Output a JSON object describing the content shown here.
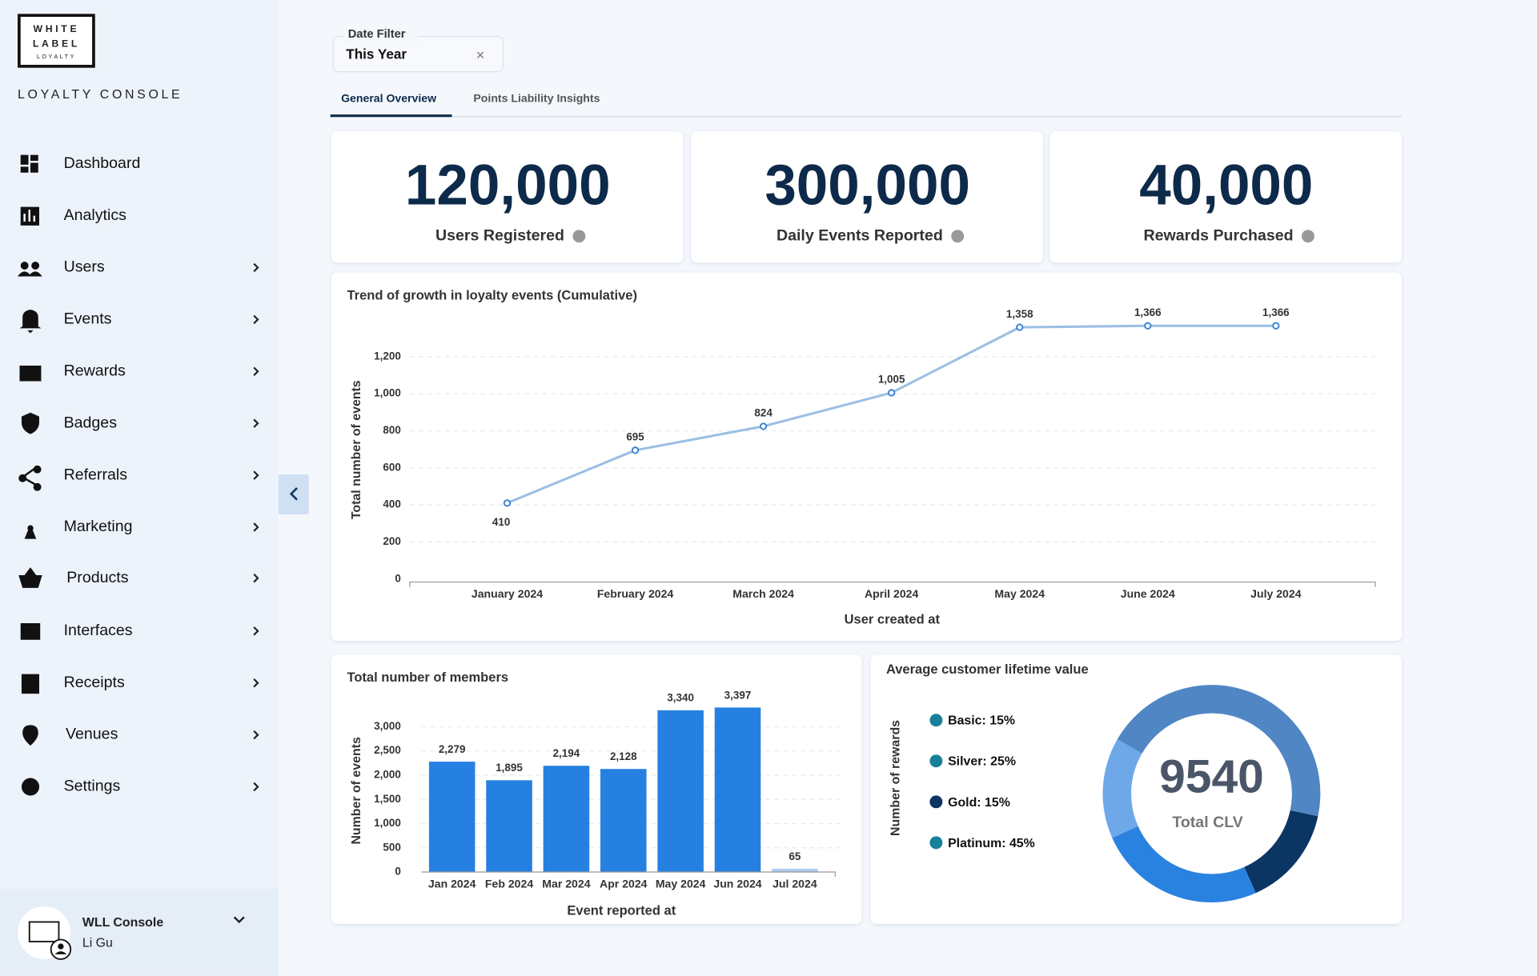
{
  "sidebar": {
    "brand": [
      "WHITE",
      "LABEL",
      "LOYALTY"
    ],
    "title": "LOYALTY CONSOLE",
    "menu": [
      "Dashboard",
      "Analytics",
      "Users",
      "Events",
      "Rewards",
      "Badges",
      "Referrals",
      "Marketing",
      "Products",
      "Interfaces",
      "Receipts",
      "Venues",
      "Settings"
    ],
    "user": {
      "name": "WLL Console",
      "role": "Li Gu"
    }
  },
  "filter": {
    "label": "Date Filter",
    "value": "This Year"
  },
  "tabs": [
    "General Overview",
    "Points Liability Insights"
  ],
  "kpis": [
    {
      "value": "120,000",
      "label": "Users Registered"
    },
    {
      "value": "300,000",
      "label": "Daily Events Reported"
    },
    {
      "value": "40,000",
      "label": "Rewards Purchased"
    }
  ],
  "chart_data": [
    {
      "type": "line",
      "title": "Trend of growth in loyalty events (Cumulative)",
      "x_label": "User created at",
      "y_label": "Total number of events",
      "categories": [
        "January 2024",
        "February 2024",
        "March 2024",
        "April 2024",
        "May 2024",
        "June 2024",
        "July 2024"
      ],
      "values": [
        410,
        695,
        824,
        1005,
        1358,
        1366,
        1366
      ],
      "value_labels": [
        "410",
        "695",
        "824",
        "1,005",
        "1,358",
        "1,366",
        "1,366"
      ],
      "color": "#9bbfe3",
      "ylim": [
        0,
        1400
      ],
      "yticks": [
        0,
        200,
        400,
        600,
        800,
        {
          "value": 1000,
          "label": "1,000"
        },
        {
          "value": 1200,
          "label": "1,200"
        }
      ],
      "grid": true
    },
    {
      "type": "bar",
      "title": "Total number of members",
      "x_label": "Event reported at",
      "y_label": "Number of events",
      "categories": [
        "Jan 2024",
        "Feb 2024",
        "Mar 2024",
        "Apr 2024",
        "May 2024",
        "Jun 2024",
        "Jul 2024"
      ],
      "values": [
        2279,
        1895,
        2194,
        2128,
        3340,
        3397,
        65
      ],
      "value_labels": [
        "2,279",
        "1,895",
        "2,194",
        "2,128",
        "3,340",
        "3,397",
        "65"
      ],
      "colors": [
        "#2680e1",
        "#2680e1",
        "#2680e1",
        "#2680e1",
        "#2680e1",
        "#2680e1",
        "#a9c9ef"
      ],
      "ylim": [
        0,
        3500
      ],
      "yticks": [
        0,
        500,
        {
          "value": 1000,
          "label": "1,000"
        },
        {
          "value": 1500,
          "label": "1,500"
        },
        {
          "value": 2000,
          "label": "2,000"
        },
        {
          "value": 2500,
          "label": "2,500"
        },
        {
          "value": 3000,
          "label": "3,000"
        }
      ],
      "grid": true
    },
    {
      "type": "donut",
      "title": "Average customer lifetime value",
      "y_label": "Number of rewards",
      "categories": [
        "Basic",
        "Silver",
        "Gold",
        "Platinum"
      ],
      "values": [
        15,
        25,
        15,
        45
      ],
      "value_labels": [
        "Basic: 15%",
        "Silver: 25%",
        "Gold: 15%",
        "Platinum: 45%"
      ],
      "colors": [
        "#6ea8e8",
        "#2a82e0",
        "#0b3563",
        "#5186c4"
      ],
      "legend_colors": [
        "#17809b",
        "#17809b",
        "#0b3563",
        "#17809b"
      ],
      "center_value": "9540",
      "center_label": "Total CLV"
    }
  ]
}
